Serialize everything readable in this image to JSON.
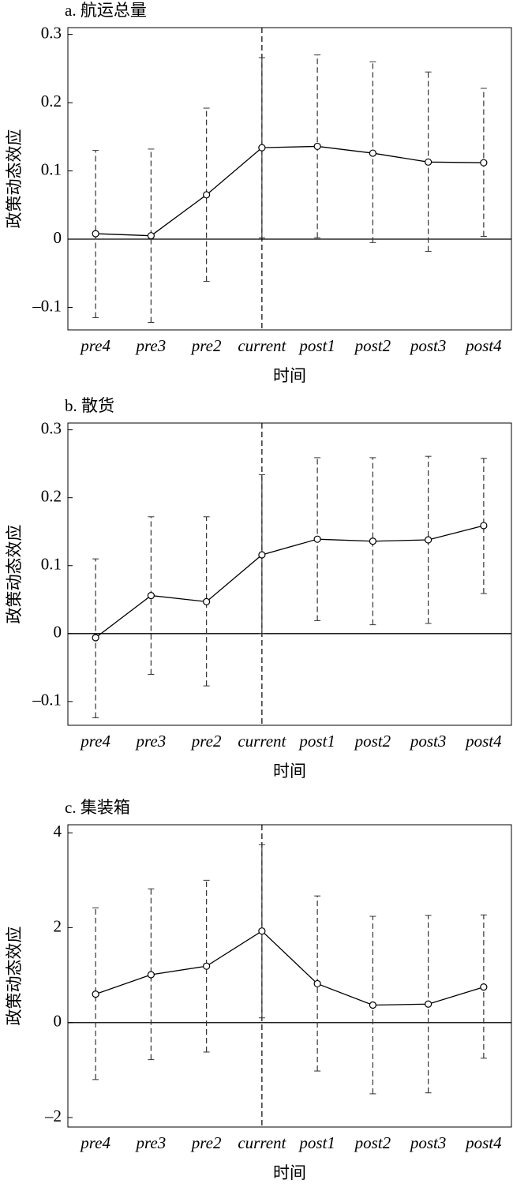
{
  "chart_data": [
    {
      "type": "line",
      "title": "a. 航运总量",
      "ylabel": "政策动态效应",
      "xlabel": "时间",
      "categories": [
        "pre4",
        "pre3",
        "pre2",
        "current",
        "post1",
        "post2",
        "post3",
        "post4"
      ],
      "values": [
        0.008,
        0.005,
        0.065,
        0.134,
        0.136,
        0.126,
        0.113,
        0.112
      ],
      "ci_lower": [
        -0.115,
        -0.122,
        -0.062,
        0.002,
        0.002,
        -0.005,
        -0.018,
        0.004
      ],
      "ci_upper": [
        0.13,
        0.132,
        0.192,
        0.266,
        0.27,
        0.26,
        0.245,
        0.221
      ],
      "color": "#000000",
      "vline": "current",
      "ylim": [
        -0.133,
        0.31
      ],
      "yticks": [
        {
          "value": -0.1,
          "label": "–0.1"
        },
        0,
        0.1,
        0.2,
        0.3
      ]
    },
    {
      "type": "line",
      "title": "b. 散货",
      "ylabel": "政策动态效应",
      "xlabel": "时间",
      "categories": [
        "pre4",
        "pre3",
        "pre2",
        "current",
        "post1",
        "post2",
        "post3",
        "post4"
      ],
      "values": [
        -0.006,
        0.056,
        0.047,
        0.116,
        0.139,
        0.136,
        0.138,
        0.159
      ],
      "ci_lower": [
        -0.124,
        -0.06,
        -0.077,
        0.0,
        0.019,
        0.013,
        0.015,
        0.059
      ],
      "ci_upper": [
        0.11,
        0.172,
        0.172,
        0.234,
        0.259,
        0.259,
        0.261,
        0.258
      ],
      "color": "#000000",
      "vline": "current",
      "ylim": [
        -0.135,
        0.31
      ],
      "yticks": [
        {
          "value": -0.1,
          "label": "–0.1"
        },
        0,
        0.1,
        0.2,
        0.3
      ]
    },
    {
      "type": "line",
      "title": "c. 集装箱",
      "ylabel": "政策动态效应",
      "xlabel": "时间",
      "categories": [
        "pre4",
        "pre3",
        "pre2",
        "current",
        "post1",
        "post2",
        "post3",
        "post4"
      ],
      "values": [
        0.6,
        1.01,
        1.19,
        1.93,
        0.82,
        0.37,
        0.39,
        0.75
      ],
      "ci_lower": [
        -1.2,
        -0.78,
        -0.62,
        0.1,
        -1.02,
        -1.5,
        -1.48,
        -0.75
      ],
      "ci_upper": [
        2.42,
        2.82,
        3.0,
        3.75,
        2.67,
        2.24,
        2.26,
        2.27
      ],
      "color": "#000000",
      "vline": "current",
      "ylim": [
        -2.2,
        4.17
      ],
      "yticks": [
        {
          "value": -2,
          "label": "–2"
        },
        0,
        2,
        4
      ]
    }
  ]
}
